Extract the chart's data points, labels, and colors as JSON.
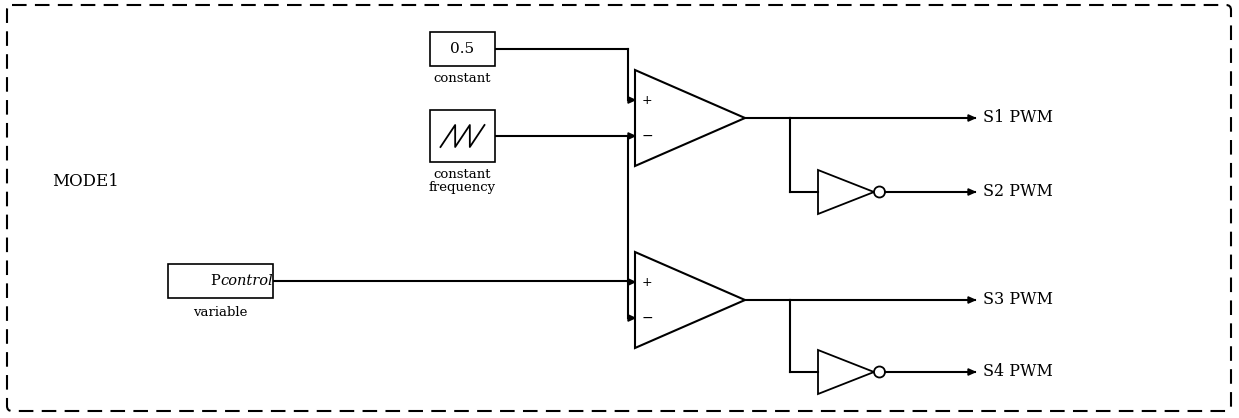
{
  "bg_color": "#ffffff",
  "border_color": "#000000",
  "text_color": "#000000",
  "mode_label": "MODE1",
  "constant_value": "0.5",
  "constant_label": "constant",
  "freq_label1": "constant",
  "freq_label2": "frequency",
  "variable_label": "variable",
  "pcontrol_p": "P",
  "pcontrol_italic": "control",
  "s1_label": "S1 PWM",
  "s2_label": "S2 PWM",
  "s3_label": "S3 PWM",
  "s4_label": "S4 PWM"
}
